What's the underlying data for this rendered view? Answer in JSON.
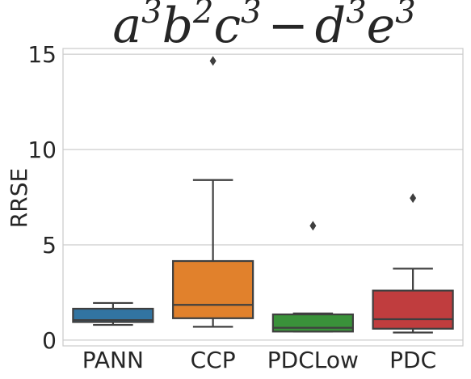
{
  "chart_data": {
    "type": "box",
    "title": {
      "base_a": "a",
      "exp_a": "3",
      "base_b": "b",
      "exp_b": "2",
      "base_c": "c",
      "exp_c": "3",
      "minus": "−",
      "base_d": "d",
      "exp_d": "3",
      "base_e": "e",
      "exp_e": "3"
    },
    "ylabel": "RRSE",
    "xlabel": "",
    "ylim": [
      -0.3,
      15.3
    ],
    "yticks": [
      0,
      5,
      10,
      15
    ],
    "grid": true,
    "categories": [
      "PANN",
      "CCP",
      "PDCLow",
      "PDC"
    ],
    "colors": [
      "#3274a1",
      "#e1812c",
      "#3a923a",
      "#c03d3e"
    ],
    "boxes": [
      {
        "name": "PANN",
        "whisker_low": 0.8,
        "q1": 0.95,
        "median": 1.05,
        "q3": 1.65,
        "whisker_high": 1.95,
        "outliers": []
      },
      {
        "name": "CCP",
        "whisker_low": 0.7,
        "q1": 1.15,
        "median": 1.85,
        "q3": 4.15,
        "whisker_high": 8.4,
        "outliers": [
          14.65
        ]
      },
      {
        "name": "PDCLow",
        "whisker_low": 0.45,
        "q1": 0.45,
        "median": 0.65,
        "q3": 1.35,
        "whisker_high": 1.4,
        "outliers": [
          6.0
        ]
      },
      {
        "name": "PDC",
        "whisker_low": 0.4,
        "q1": 0.6,
        "median": 1.1,
        "q3": 2.6,
        "whisker_high": 3.75,
        "outliers": [
          7.45
        ]
      }
    ]
  }
}
